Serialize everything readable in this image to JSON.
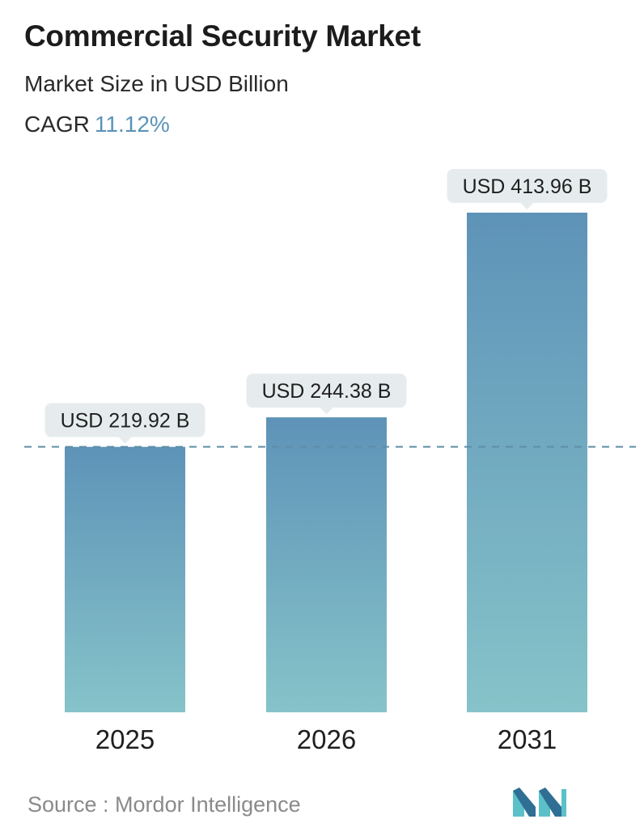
{
  "header": {
    "title": "Commercial Security Market",
    "subtitle": "Market Size in USD Billion",
    "cagr_label": "CAGR",
    "cagr_value": "11.12%"
  },
  "chart_data": {
    "type": "bar",
    "title": "Commercial Security Market",
    "subtitle": "Market Size in USD Billion",
    "categories": [
      "2025",
      "2026",
      "2031"
    ],
    "values": [
      219.92,
      244.38,
      413.96
    ],
    "data_labels": [
      "USD 219.92 B",
      "USD 244.38 B",
      "USD 413.96 B"
    ],
    "xlabel": "",
    "ylabel": "",
    "ylim": [
      0,
      413.96
    ],
    "grid": false,
    "reference_line": {
      "value": 219.92,
      "style": "dashed"
    }
  },
  "footer": {
    "source": "Source :  Mordor Intelligence"
  },
  "colors": {
    "bar_top": "#5e93b8",
    "bar_bottom": "#86c3c9",
    "label_bg": "#e6eced",
    "dashed_line": "#5f8ea8",
    "cagr_value": "#5b93b8",
    "logo_dark": "#2e6f93",
    "logo_light": "#5cc0c9"
  }
}
